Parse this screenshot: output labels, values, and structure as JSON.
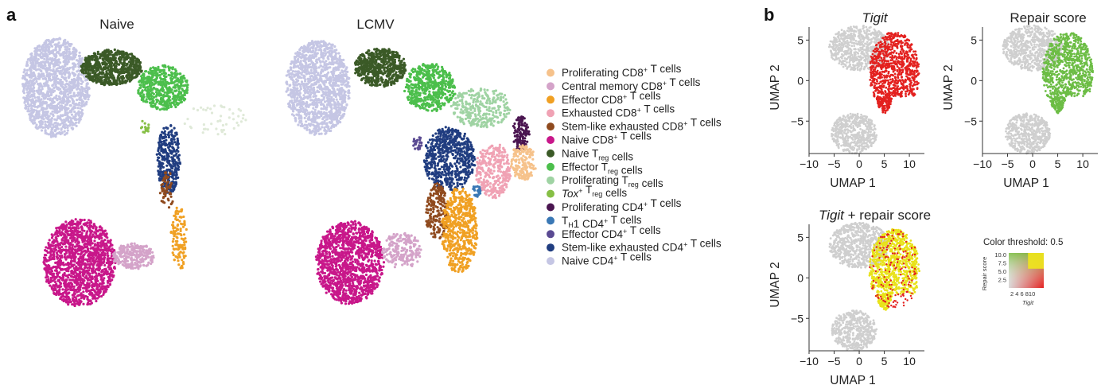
{
  "panel_a": {
    "label": "a",
    "titles": [
      "Naive",
      "LCMV"
    ],
    "legend": [
      {
        "base": "Proliferating CD8",
        "sup": "+",
        "sub": "",
        "rest": " T cells",
        "italic": false,
        "color": "#f6c28b"
      },
      {
        "base": "Central memory CD8",
        "sup": "+",
        "sub": "",
        "rest": " T cells",
        "italic": false,
        "color": "#d4a3c9"
      },
      {
        "base": "Effector CD8",
        "sup": "+",
        "sub": "",
        "rest": " T cells",
        "italic": false,
        "color": "#f0a023"
      },
      {
        "base": "Exhausted CD8",
        "sup": "+",
        "sub": "",
        "rest": " T cells",
        "italic": false,
        "color": "#f0a2b4"
      },
      {
        "base": "Stem-like exhausted CD8",
        "sup": "+",
        "sub": "",
        "rest": " T cells",
        "italic": false,
        "color": "#8f4a1e"
      },
      {
        "base": "Naive CD8",
        "sup": "+",
        "sub": "",
        "rest": " T cells",
        "italic": false,
        "color": "#c8178a"
      },
      {
        "base": "Naive T",
        "sup": "",
        "sub": "reg",
        "rest": " cells",
        "italic": false,
        "color": "#3b5a27"
      },
      {
        "base": "Effector T",
        "sup": "",
        "sub": "reg",
        "rest": " cells",
        "italic": false,
        "color": "#4cbf4c"
      },
      {
        "base": "Proliferating T",
        "sup": "",
        "sub": "reg",
        "rest": " cells",
        "italic": false,
        "color": "#9fd3a3"
      },
      {
        "base": "Tox",
        "sup": "+",
        "sub": "",
        "rest": " T",
        "sub2": "reg",
        "rest2": " cells",
        "italic": true,
        "color": "#86bf45"
      },
      {
        "base": "Proliferating CD4",
        "sup": "+",
        "sub": "",
        "rest": " T cells",
        "italic": false,
        "color": "#4a1550"
      },
      {
        "base": "T",
        "sup": "",
        "sub": "H",
        "rest": "1 CD4",
        "sup2": "+",
        "rest2": " T cells",
        "italic": false,
        "color": "#3a78b5"
      },
      {
        "base": "Effector CD4",
        "sup": "+",
        "sub": "",
        "rest": " T cells",
        "italic": false,
        "color": "#5a4a92"
      },
      {
        "base": "Stem-like exhausted CD4",
        "sup": "+",
        "sub": "",
        "rest": " T cells",
        "italic": false,
        "color": "#203d80"
      },
      {
        "base": "Naive CD4",
        "sup": "+",
        "sub": "",
        "rest": " T cells",
        "italic": false,
        "color": "#c5c6e4"
      }
    ]
  },
  "panel_b": {
    "label": "b",
    "plots": [
      {
        "title": "Tigit",
        "title_italic": true,
        "title_suffix": "",
        "color": "#e3211f"
      },
      {
        "title": "Repair score",
        "title_italic": false,
        "title_suffix": "",
        "color": "#6cbd45"
      },
      {
        "title": "Tigit",
        "title_italic": true,
        "title_suffix": " + repair score",
        "color": "#e8e21a"
      }
    ],
    "xlabel": "UMAP 1",
    "ylabel": "UMAP 2",
    "xticks": [
      "−10",
      "−5",
      "0",
      "5",
      "10"
    ],
    "yticks": [
      "5",
      "0",
      "−5"
    ],
    "color_threshold_label": "Color threshold: 0.5",
    "mini_key": {
      "ylabel": "Repair score",
      "xlabel": "Tigit",
      "yticks": [
        "10.0",
        "7.5",
        "5.0",
        "2.5"
      ],
      "xticks": "2 4 6 810"
    }
  },
  "chart_data": [
    {
      "type": "scatter",
      "title": "Naive",
      "categories": [
        "Proliferating CD8+ T cells",
        "Central memory CD8+ T cells",
        "Effector CD8+ T cells",
        "Exhausted CD8+ T cells",
        "Stem-like exhausted CD8+ T cells",
        "Naive CD8+ T cells",
        "Naive Treg cells",
        "Effector Treg cells",
        "Proliferating Treg cells",
        "Tox+ Treg cells",
        "Proliferating CD4+ T cells",
        "TH1 CD4+ T cells",
        "Effector CD4+ T cells",
        "Stem-like exhausted CD4+ T cells",
        "Naive CD4+ T cells"
      ],
      "xlabel": "",
      "ylabel": ""
    },
    {
      "type": "scatter",
      "title": "LCMV",
      "categories": [
        "Proliferating CD8+ T cells",
        "Central memory CD8+ T cells",
        "Effector CD8+ T cells",
        "Exhausted CD8+ T cells",
        "Stem-like exhausted CD8+ T cells",
        "Naive CD8+ T cells",
        "Naive Treg cells",
        "Effector Treg cells",
        "Proliferating Treg cells",
        "Tox+ Treg cells",
        "Proliferating CD4+ T cells",
        "TH1 CD4+ T cells",
        "Effector CD4+ T cells",
        "Stem-like exhausted CD4+ T cells",
        "Naive CD4+ T cells"
      ],
      "xlabel": "",
      "ylabel": ""
    },
    {
      "type": "scatter",
      "title": "Tigit",
      "xlabel": "UMAP 1",
      "ylabel": "UMAP 2",
      "xlim": [
        -10,
        13
      ],
      "ylim": [
        -9,
        7
      ]
    },
    {
      "type": "scatter",
      "title": "Repair score",
      "xlabel": "UMAP 1",
      "ylabel": "UMAP 2",
      "xlim": [
        -10,
        13
      ],
      "ylim": [
        -9,
        7
      ]
    },
    {
      "type": "scatter",
      "title": "Tigit + repair score",
      "xlabel": "UMAP 1",
      "ylabel": "UMAP 2",
      "xlim": [
        -10,
        13
      ],
      "ylim": [
        -9,
        7
      ]
    }
  ]
}
